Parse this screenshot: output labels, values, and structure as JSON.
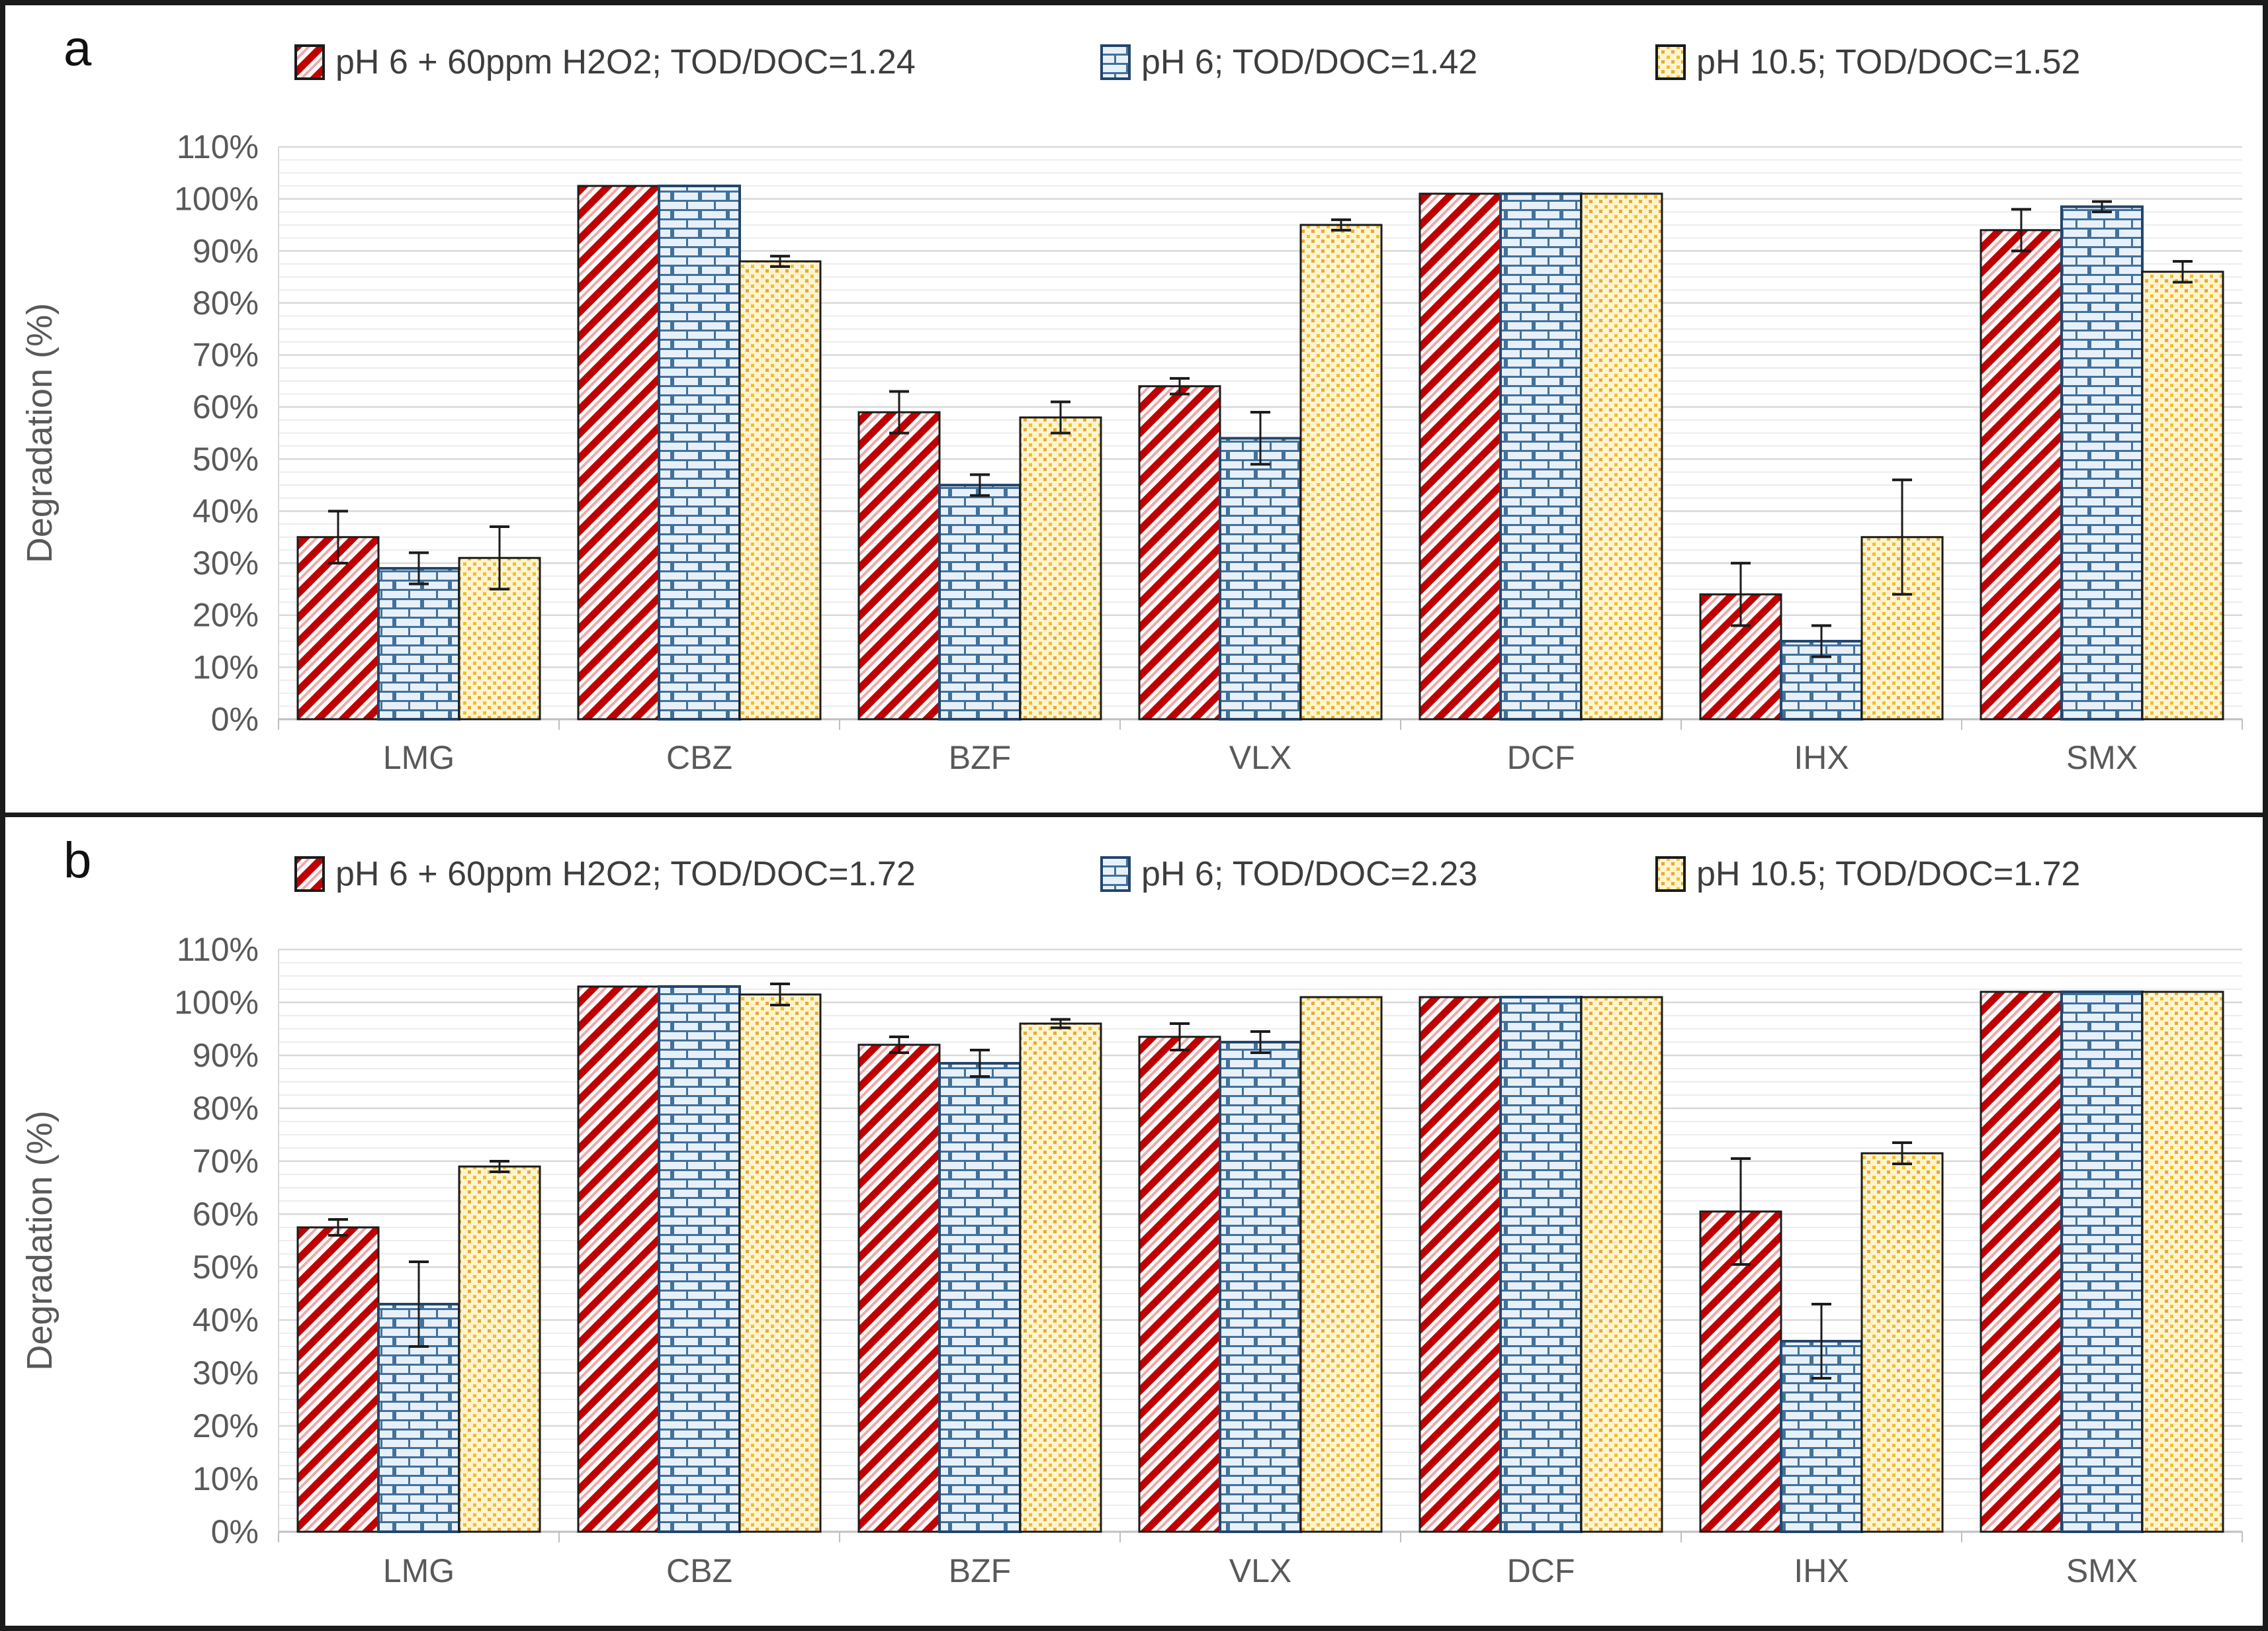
{
  "figure": {
    "panels": [
      {
        "label": "a"
      },
      {
        "label": "b"
      }
    ],
    "divider": "horizontal-black-line"
  },
  "style": {
    "red_stripe": "#C00000",
    "red_stripe_light": "#EAADAD",
    "blue_mortar": "#41719C",
    "blue_fill": "#E7F0F9",
    "blue_stroke": "#24456B",
    "yellow_bg": "#FFF4CE",
    "yellow_dot": "#F2BF29",
    "yellow_dot_dark": "#E7A93C",
    "bar_stroke": "#1b1b1b",
    "grid_minor": "#ECECEC",
    "grid_major": "#D8D8D8",
    "axis_line": "#BFBFBF",
    "axis_text": "#595959"
  },
  "chart_data": [
    {
      "type": "bar",
      "panel_label": "a",
      "categories": [
        "LMG",
        "CBZ",
        "BZF",
        "VLX",
        "DCF",
        "IHX",
        "SMX"
      ],
      "ylabel": "Degradation (%)",
      "ylim": [
        0,
        110
      ],
      "ytick_step": 10,
      "yticks": [
        "0%",
        "10%",
        "20%",
        "30%",
        "40%",
        "50%",
        "60%",
        "70%",
        "80%",
        "90%",
        "100%",
        "110%"
      ],
      "grid": "horizontal",
      "legend_position": "top",
      "error_bars": true,
      "series": [
        {
          "name": "pH 6 + 60ppm H2O2; TOD/DOC=1.24",
          "pattern": "red-diagonal-stripes",
          "values": [
            35,
            102.5,
            59,
            64,
            101,
            24,
            94
          ],
          "errors": [
            5,
            0,
            4,
            1.5,
            0,
            6,
            4
          ]
        },
        {
          "name": "pH 6; TOD/DOC=1.42",
          "pattern": "blue-brick",
          "values": [
            29,
            102.5,
            45,
            54,
            101,
            15,
            98.5
          ],
          "errors": [
            3,
            0,
            2,
            5,
            0,
            3,
            1
          ]
        },
        {
          "name": "pH 10.5; TOD/DOC=1.52",
          "pattern": "yellow-dots",
          "values": [
            31,
            88,
            58,
            95,
            101,
            35,
            86
          ],
          "errors": [
            6,
            1,
            3,
            1,
            0,
            11,
            2
          ]
        }
      ]
    },
    {
      "type": "bar",
      "panel_label": "b",
      "categories": [
        "LMG",
        "CBZ",
        "BZF",
        "VLX",
        "DCF",
        "IHX",
        "SMX"
      ],
      "ylabel": "Degradation (%)",
      "ylim": [
        0,
        110
      ],
      "ytick_step": 10,
      "yticks": [
        "0%",
        "10%",
        "20%",
        "30%",
        "40%",
        "50%",
        "60%",
        "70%",
        "80%",
        "90%",
        "100%",
        "110%"
      ],
      "grid": "horizontal",
      "legend_position": "top",
      "error_bars": true,
      "series": [
        {
          "name": "pH 6 + 60ppm H2O2; TOD/DOC=1.72",
          "pattern": "red-diagonal-stripes",
          "values": [
            57.5,
            103,
            92,
            93.5,
            101,
            60.5,
            102
          ],
          "errors": [
            1.5,
            0,
            1.5,
            2.5,
            0,
            10,
            0
          ]
        },
        {
          "name": "pH 6; TOD/DOC=2.23",
          "pattern": "blue-brick",
          "values": [
            43,
            103,
            88.5,
            92.5,
            101,
            36,
            102
          ],
          "errors": [
            8,
            0,
            2.5,
            2,
            0,
            7,
            0
          ]
        },
        {
          "name": "pH 10.5; TOD/DOC=1.72",
          "pattern": "yellow-dots",
          "values": [
            69,
            101.5,
            96,
            101,
            101,
            71.5,
            102
          ],
          "errors": [
            1,
            2,
            0.8,
            0,
            0,
            2,
            0
          ]
        }
      ]
    }
  ]
}
